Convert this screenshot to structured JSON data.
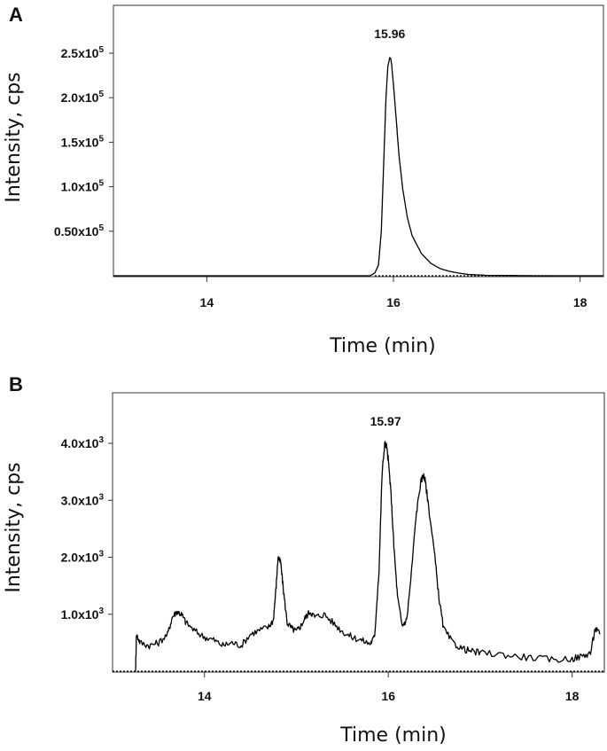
{
  "chart_data": [
    {
      "panel": "A",
      "type": "line",
      "xlabel": "Time (min)",
      "ylabel": "Intensity, cps",
      "xlim": [
        13.0,
        18.25
      ],
      "ylim": [
        0,
        250000
      ],
      "x_ticks": [
        14,
        16,
        18
      ],
      "y_ticks": [
        {
          "value": 50000,
          "label": "0.50x10",
          "exp": "5"
        },
        {
          "value": 100000,
          "label": "1.0x10",
          "exp": "5"
        },
        {
          "value": 150000,
          "label": "1.5x10",
          "exp": "5"
        },
        {
          "value": 200000,
          "label": "2.0x10",
          "exp": "5"
        },
        {
          "value": 250000,
          "label": "2.5x10",
          "exp": "5"
        }
      ],
      "peak_annotation": {
        "label": "15.96",
        "x": 15.96,
        "y": 245000
      },
      "series": [
        {
          "x": [
            13.0,
            14.0,
            15.0,
            15.75,
            15.8,
            15.84,
            15.87,
            15.9,
            15.92,
            15.94,
            15.96,
            15.97,
            15.98,
            16.0,
            16.03,
            16.06,
            16.1,
            16.15,
            16.2,
            16.3,
            16.4,
            16.5,
            16.6,
            16.7,
            16.8,
            17.0,
            17.5,
            18.0,
            18.25
          ],
          "y": [
            0,
            0,
            0,
            0,
            3000,
            12000,
            50000,
            140000,
            200000,
            235000,
            245000,
            244000,
            238000,
            215000,
            175000,
            135000,
            97000,
            65000,
            45000,
            25000,
            14000,
            8000,
            5000,
            3000,
            1500,
            500,
            0,
            0,
            0
          ]
        }
      ],
      "baseline": {
        "x": [
          15.8,
          17.7
        ],
        "y": 0
      }
    },
    {
      "panel": "B",
      "type": "line",
      "xlabel": "Time (min)",
      "ylabel": "Intensity, cps",
      "xlim": [
        13.0,
        18.35
      ],
      "ylim": [
        0,
        4500
      ],
      "x_ticks": [
        14,
        16,
        18
      ],
      "y_ticks": [
        {
          "value": 1000,
          "label": "1.0x10",
          "exp": "3"
        },
        {
          "value": 2000,
          "label": "2.0x10",
          "exp": "3"
        },
        {
          "value": 3000,
          "label": "3.0x10",
          "exp": "3"
        },
        {
          "value": 4000,
          "label": "4.0x10",
          "exp": "3"
        }
      ],
      "peak_annotation": {
        "label": "15.97",
        "x": 15.97,
        "y": 4000
      },
      "series": [
        {
          "x": [
            13.25,
            13.26,
            13.3,
            13.4,
            13.5,
            13.6,
            13.65,
            13.7,
            13.75,
            13.8,
            13.9,
            14.0,
            14.1,
            14.2,
            14.3,
            14.4,
            14.5,
            14.6,
            14.7,
            14.75,
            14.78,
            14.8,
            14.83,
            14.86,
            14.9,
            14.95,
            15.0,
            15.05,
            15.1,
            15.15,
            15.2,
            15.3,
            15.4,
            15.5,
            15.6,
            15.7,
            15.8,
            15.85,
            15.9,
            15.93,
            15.96,
            15.98,
            16.0,
            16.03,
            16.06,
            16.1,
            16.15,
            16.2,
            16.25,
            16.3,
            16.35,
            16.38,
            16.4,
            16.43,
            16.5,
            16.55,
            16.6,
            16.7,
            16.8,
            16.9,
            17.0,
            17.2,
            17.4,
            17.6,
            17.8,
            18.0,
            18.1,
            18.2,
            18.25,
            18.3
          ],
          "y": [
            0,
            650,
            500,
            450,
            500,
            650,
            950,
            1050,
            1000,
            850,
            700,
            600,
            550,
            450,
            500,
            450,
            650,
            720,
            780,
            900,
            1500,
            2000,
            1900,
            1400,
            850,
            750,
            700,
            800,
            950,
            1050,
            950,
            1000,
            850,
            700,
            600,
            550,
            480,
            600,
            1800,
            3400,
            4000,
            3950,
            3700,
            3100,
            2200,
            1300,
            800,
            900,
            1700,
            2700,
            3300,
            3450,
            3350,
            3000,
            2100,
            1300,
            750,
            500,
            400,
            350,
            320,
            300,
            260,
            230,
            200,
            220,
            260,
            320,
            750,
            650
          ]
        }
      ],
      "baseline": {
        "x": [
          13.0,
          18.35
        ],
        "y": 0
      }
    }
  ]
}
